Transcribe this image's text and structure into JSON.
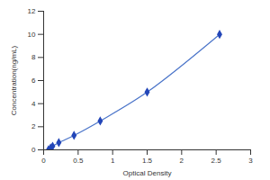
{
  "chart_data": {
    "type": "line",
    "x": [
      0.07,
      0.1,
      0.13,
      0.22,
      0.44,
      0.82,
      1.5,
      2.55
    ],
    "values": [
      0,
      0.16,
      0.31,
      0.625,
      1.25,
      2.5,
      5,
      10
    ],
    "color": "#2346b8",
    "marker": "diamond",
    "xlabel": "Optical Density",
    "ylabel": "Concentration(ng/mL)",
    "xlim": [
      0,
      3
    ],
    "ylim": [
      0,
      12
    ],
    "xticks": [
      0,
      0.5,
      1,
      1.5,
      2,
      2.5,
      3
    ],
    "yticks": [
      0,
      2,
      4,
      6,
      8,
      10,
      12
    ]
  }
}
